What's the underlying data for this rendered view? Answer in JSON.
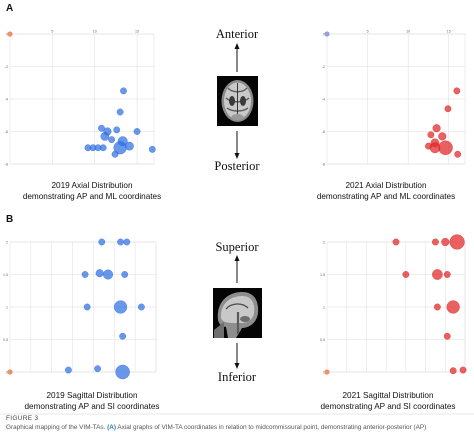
{
  "panels": {
    "A": "A",
    "B": "B"
  },
  "labels": {
    "anterior": "Anterior",
    "posterior": "Posterior",
    "superior": "Superior",
    "inferior": "Inferior"
  },
  "figure": {
    "label": "FIGURE 3",
    "caption_prefix": "Graphical mapping of the VIM-TAs. ",
    "caption_strong": "(A)",
    "caption_rest": " Axial graphs of VIM-TA coordinates in relation to midcommissural point, demonstrating anterior-posterior (AP)"
  },
  "icons": {
    "axial_mri": "axial-brain-mri-icon",
    "sagittal_mri": "sagittal-brain-mri-icon"
  },
  "colors": {
    "blue": "#2f6fe0",
    "red": "#e02424",
    "origin_point": "#e88050",
    "origin_point_alt": "#8a8ed0",
    "grid": "#dddddd"
  },
  "chart_data": [
    {
      "id": "axial-2019",
      "type": "scatter",
      "title": "2019 Axial Distribution",
      "subtitle": "demonstrating AP and ML coordinates",
      "series_color": "#2f6fe0",
      "xlim": [
        0,
        17
      ],
      "ylim": [
        -8,
        0
      ],
      "x_ticks": [
        5,
        10,
        15
      ],
      "y_ticks": [
        0,
        -2,
        -4,
        -6,
        -8
      ],
      "y_tick_labels": [
        "0",
        "-2",
        "-4",
        "-6",
        "-8"
      ],
      "x_tick_labels": [
        "5",
        "10",
        "15"
      ],
      "origin": {
        "x": 0,
        "y": 0
      },
      "points": [
        {
          "x": 13.4,
          "y": -3.5,
          "r": 1
        },
        {
          "x": 13.0,
          "y": -4.8,
          "r": 1
        },
        {
          "x": 10.8,
          "y": -5.8,
          "r": 1
        },
        {
          "x": 11.5,
          "y": -6.0,
          "r": 1.2
        },
        {
          "x": 12.6,
          "y": -5.9,
          "r": 1
        },
        {
          "x": 15.0,
          "y": -6.0,
          "r": 1
        },
        {
          "x": 11.2,
          "y": -6.3,
          "r": 1.3
        },
        {
          "x": 12.0,
          "y": -6.5,
          "r": 1
        },
        {
          "x": 13.3,
          "y": -6.6,
          "r": 1.5
        },
        {
          "x": 9.2,
          "y": -7.0,
          "r": 1
        },
        {
          "x": 9.8,
          "y": -7.0,
          "r": 1
        },
        {
          "x": 10.4,
          "y": -7.0,
          "r": 1
        },
        {
          "x": 11.0,
          "y": -7.0,
          "r": 1
        },
        {
          "x": 13.0,
          "y": -7.0,
          "r": 2
        },
        {
          "x": 14.1,
          "y": -6.9,
          "r": 1.3
        },
        {
          "x": 16.8,
          "y": -7.1,
          "r": 1
        },
        {
          "x": 12.4,
          "y": -7.4,
          "r": 1
        }
      ]
    },
    {
      "id": "axial-2021",
      "type": "scatter",
      "title": "2021 Axial Distribution",
      "subtitle": "demonstrating AP and ML coordinates",
      "series_color": "#e02424",
      "xlim": [
        0,
        17
      ],
      "ylim": [
        -8,
        0
      ],
      "x_ticks": [
        5,
        10,
        15
      ],
      "y_ticks": [
        0,
        -2,
        -4,
        -6,
        -8
      ],
      "y_tick_labels": [
        "0",
        "-2",
        "-4",
        "-6",
        "-8"
      ],
      "x_tick_labels": [
        "5",
        "10",
        "15"
      ],
      "origin": {
        "x": 0,
        "y": 0
      },
      "points": [
        {
          "x": 16.0,
          "y": -3.5,
          "r": 1
        },
        {
          "x": 14.9,
          "y": -4.6,
          "r": 1
        },
        {
          "x": 13.5,
          "y": -5.8,
          "r": 1.2
        },
        {
          "x": 12.8,
          "y": -6.2,
          "r": 1
        },
        {
          "x": 14.2,
          "y": -6.3,
          "r": 1.2
        },
        {
          "x": 13.3,
          "y": -6.7,
          "r": 1.3
        },
        {
          "x": 12.5,
          "y": -6.9,
          "r": 1
        },
        {
          "x": 13.3,
          "y": -7.0,
          "r": 1.6
        },
        {
          "x": 14.6,
          "y": -7.0,
          "r": 2.2
        },
        {
          "x": 16.1,
          "y": -7.4,
          "r": 1
        }
      ]
    },
    {
      "id": "sagittal-2019",
      "type": "scatter",
      "title": "2019 Sagittal Distribution",
      "subtitle": "demonstrating AP and SI coordinates",
      "series_color": "#2f6fe0",
      "xlim": [
        0,
        7
      ],
      "ylim": [
        0,
        2
      ],
      "x_ticks": [
        1,
        2,
        3,
        4,
        5,
        6,
        7
      ],
      "y_ticks": [
        0,
        0.5,
        1,
        1.5,
        2
      ],
      "y_tick_labels": [
        "0",
        "0.5",
        "1",
        "1.5",
        "2"
      ],
      "x_tick_labels": [],
      "origin": {
        "x": 0,
        "y": 0
      },
      "points": [
        {
          "x": 4.4,
          "y": 2.0,
          "r": 1
        },
        {
          "x": 5.3,
          "y": 2.0,
          "r": 1
        },
        {
          "x": 5.6,
          "y": 2.0,
          "r": 1
        },
        {
          "x": 3.6,
          "y": 1.5,
          "r": 1
        },
        {
          "x": 4.3,
          "y": 1.52,
          "r": 1.2
        },
        {
          "x": 4.7,
          "y": 1.5,
          "r": 1.5
        },
        {
          "x": 5.5,
          "y": 1.5,
          "r": 1
        },
        {
          "x": 3.7,
          "y": 1.0,
          "r": 1
        },
        {
          "x": 5.3,
          "y": 1.0,
          "r": 2
        },
        {
          "x": 6.3,
          "y": 1.0,
          "r": 1
        },
        {
          "x": 5.4,
          "y": 0.55,
          "r": 1
        },
        {
          "x": 2.8,
          "y": 0.03,
          "r": 1
        },
        {
          "x": 4.2,
          "y": 0.05,
          "r": 1
        },
        {
          "x": 5.4,
          "y": 0.0,
          "r": 2.2
        }
      ]
    },
    {
      "id": "sagittal-2021",
      "type": "scatter",
      "title": "2021 Sagittal Distribution",
      "subtitle": "demonstrating AP and SI coordinates",
      "series_color": "#e02424",
      "xlim": [
        0,
        7
      ],
      "ylim": [
        0,
        2
      ],
      "x_ticks": [
        1,
        2,
        3,
        4,
        5,
        6,
        7
      ],
      "y_ticks": [
        0,
        0.5,
        1,
        1.5,
        2
      ],
      "y_tick_labels": [
        "0",
        "0.5",
        "1",
        "1.5",
        "2"
      ],
      "x_tick_labels": [],
      "origin": {
        "x": 0,
        "y": 0
      },
      "points": [
        {
          "x": 3.5,
          "y": 2.0,
          "r": 1
        },
        {
          "x": 5.5,
          "y": 2.0,
          "r": 1
        },
        {
          "x": 6.0,
          "y": 2.0,
          "r": 1.2
        },
        {
          "x": 6.6,
          "y": 2.0,
          "r": 2.3
        },
        {
          "x": 4.0,
          "y": 1.5,
          "r": 1
        },
        {
          "x": 5.6,
          "y": 1.5,
          "r": 1.6
        },
        {
          "x": 6.1,
          "y": 1.5,
          "r": 1
        },
        {
          "x": 5.6,
          "y": 1.0,
          "r": 1
        },
        {
          "x": 6.4,
          "y": 1.0,
          "r": 2
        },
        {
          "x": 6.1,
          "y": 0.55,
          "r": 1
        },
        {
          "x": 6.4,
          "y": 0.02,
          "r": 1
        },
        {
          "x": 6.9,
          "y": 0.03,
          "r": 1
        }
      ]
    }
  ]
}
